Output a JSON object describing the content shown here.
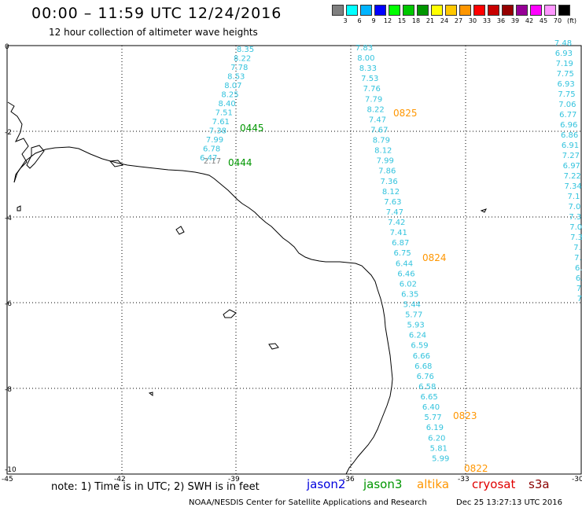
{
  "header": {
    "title": "00:00 – 11:59 UTC 12/24/2016",
    "subtitle": "12 hour collection of altimeter wave heights"
  },
  "scale": {
    "colors": [
      "#7f7f7f",
      "#00ffff",
      "#00b4ff",
      "#0000ff",
      "#00ff00",
      "#00c800",
      "#009600",
      "#ffff00",
      "#ffc800",
      "#ff9600",
      "#ff0000",
      "#c80000",
      "#960000",
      "#960096",
      "#ff00ff",
      "#ff96ff",
      "#000000"
    ],
    "labels": [
      "3",
      "6",
      "9",
      "12",
      "15",
      "18",
      "21",
      "24",
      "27",
      "30",
      "33",
      "36",
      "39",
      "42",
      "45",
      "70",
      "(ft)"
    ]
  },
  "axes": {
    "lat_labels": [
      "0",
      "-2",
      "-4",
      "-6",
      "-8",
      "-10"
    ],
    "lon_labels": [
      "-45",
      "-42",
      "-39",
      "-36",
      "-33",
      "-30"
    ]
  },
  "tracks": [
    {
      "color": "#33c3dd",
      "values": [
        "8.35",
        "8.22",
        "7.78",
        "8.53",
        "8.07",
        "8.25",
        "8.40",
        "7.51",
        "7.61",
        "7.38",
        "7.99",
        "6.78",
        "6.47"
      ]
    },
    {
      "color": "#808080",
      "values": [
        "2.17"
      ]
    },
    {
      "color": "#33c3dd",
      "values": [
        "7.83",
        "8.00",
        "8.33",
        "7.53",
        "7.76",
        "7.79",
        "8.22",
        "7.47",
        "7.67",
        "8.79",
        "8.12",
        "7.99",
        "7.86",
        "7.36",
        "8.12",
        "7.63",
        "7.47",
        "7.42",
        "7.41",
        "6.87",
        "6.75",
        "6.44",
        "6.46",
        "6.02",
        "6.35",
        "5.44",
        "5.77",
        "5.93",
        "6.24",
        "6.59",
        "6.66",
        "6.68",
        "6.76",
        "6.58",
        "6.65",
        "6.40",
        "5.77",
        "6.19",
        "6.20",
        "5.81",
        "5.99"
      ]
    },
    {
      "color": "#33c3dd",
      "values": [
        "7.48",
        "6.93",
        "7.19",
        "7.75",
        "6.93",
        "7.75",
        "7.06",
        "6.77",
        "6.96",
        "6.86",
        "6.91",
        "7.27",
        "6.97",
        "7.22",
        "7.34",
        "7.1",
        "7.0",
        "7.3",
        "7.0",
        "7.3",
        "7.",
        "7.",
        "6.",
        "6.",
        "7.",
        "7."
      ]
    }
  ],
  "pass_labels": [
    {
      "text": "0445",
      "color": "#009600"
    },
    {
      "text": "0444",
      "color": "#009600"
    },
    {
      "text": "0825",
      "color": "#ff9600"
    },
    {
      "text": "0824",
      "color": "#ff9600"
    },
    {
      "text": "0823",
      "color": "#ff9600"
    },
    {
      "text": "0822",
      "color": "#ff9600"
    }
  ],
  "legend": {
    "note": "note:  1) Time is in UTC;  2) SWH is in feet",
    "satellites": [
      {
        "name": "jason2",
        "color": "#0000dd"
      },
      {
        "name": "jason3",
        "color": "#009600"
      },
      {
        "name": "altika",
        "color": "#ff9600"
      },
      {
        "name": "cryosat",
        "color": "#e00000"
      },
      {
        "name": "s3a",
        "color": "#8b0000"
      }
    ]
  },
  "footer": {
    "credit": "NOAA/NESDIS Center for Satellite Applications and Research",
    "timestamp": "Dec 25 13:27:13 UTC 2016"
  }
}
